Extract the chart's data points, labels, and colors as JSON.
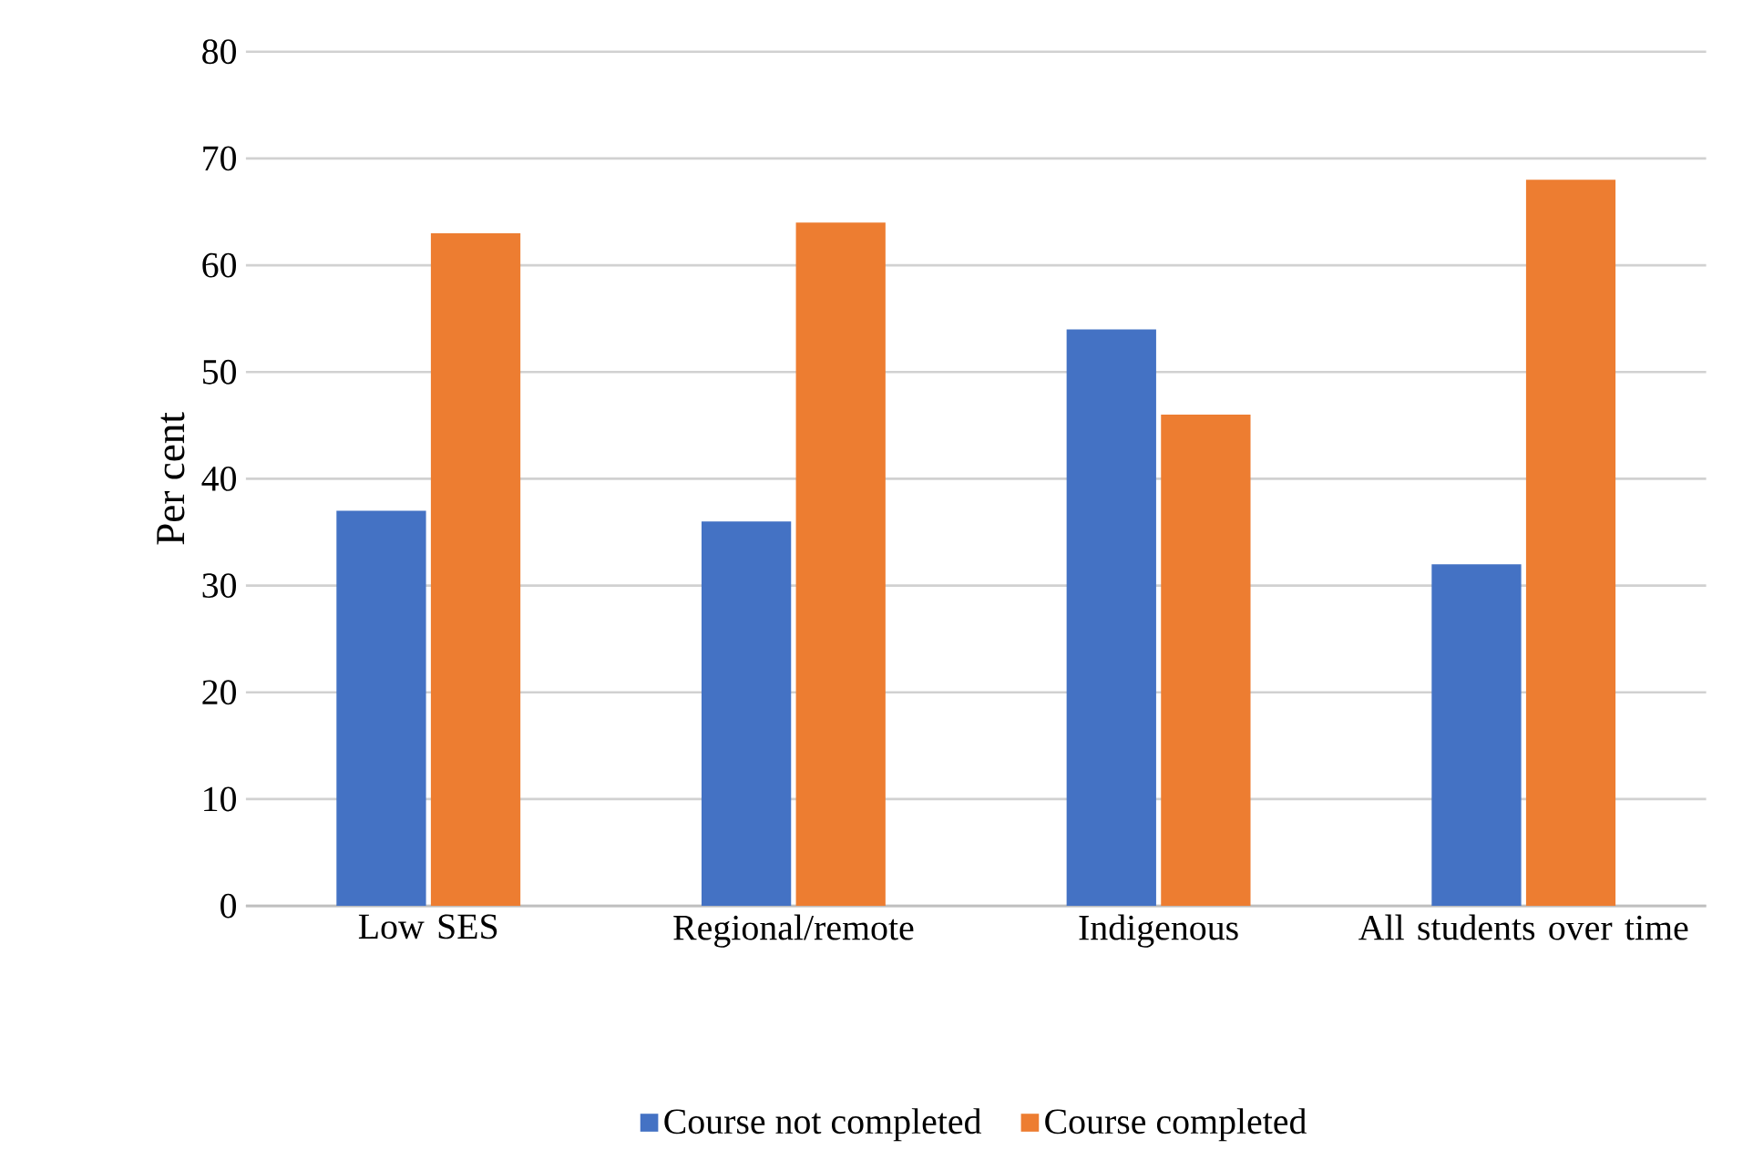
{
  "chart_data": {
    "type": "bar",
    "ylabel": "Per cent",
    "categories": [
      "Low SES",
      "Regional/remote",
      "Indigenous",
      "All students over time"
    ],
    "series": [
      {
        "name": "Course not completed",
        "color": "#4472c4",
        "values": [
          37,
          36,
          54,
          32
        ]
      },
      {
        "name": "Course completed",
        "color": "#ed7d31",
        "values": [
          63,
          64,
          46,
          68
        ]
      }
    ],
    "ylim": [
      0,
      80
    ],
    "yticks": [
      0,
      10,
      20,
      30,
      40,
      50,
      60,
      70,
      80
    ],
    "grid": "y",
    "legend": "bottom"
  }
}
